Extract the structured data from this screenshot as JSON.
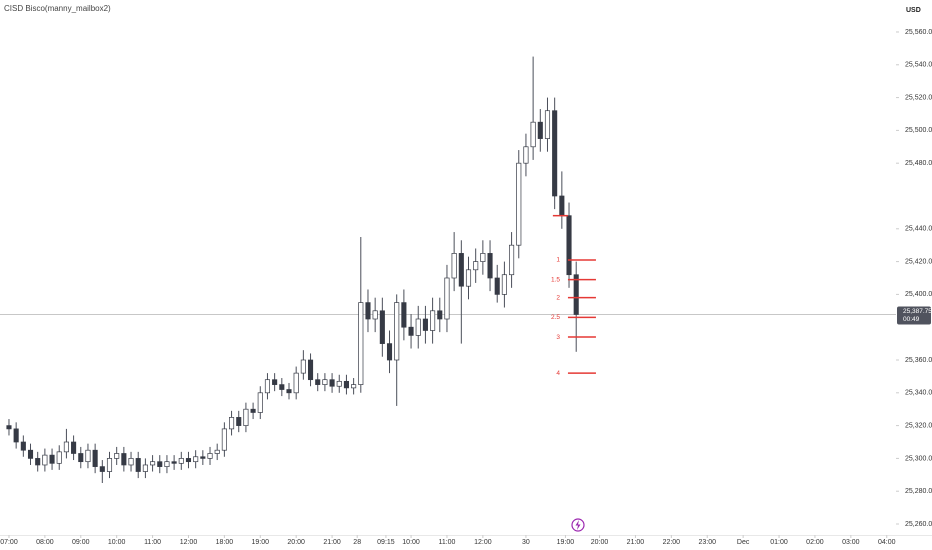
{
  "chart_data": {
    "type": "candlestick",
    "title": "CISD Bisco(manny_mailbox2)",
    "currency": "USD",
    "up_color": "#ffffff",
    "down_color": "#363a45",
    "wick_color": "#4a4e59",
    "xlim": [
      -0.25,
      24.68
    ],
    "ylim": [
      25253.3,
      25579.5
    ],
    "xticks": [
      {
        "value": 0,
        "label": "07:00"
      },
      {
        "value": 1,
        "label": "08:00"
      },
      {
        "value": 2,
        "label": "09:00"
      },
      {
        "value": 3,
        "label": "10:00"
      },
      {
        "value": 4,
        "label": "11:00"
      },
      {
        "value": 5,
        "label": "12:00"
      },
      {
        "value": 6,
        "label": "18:00"
      },
      {
        "value": 7,
        "label": "19:00"
      },
      {
        "value": 8,
        "label": "20:00"
      },
      {
        "value": 9,
        "label": "21:00"
      },
      {
        "value": 9.7,
        "label": "28"
      },
      {
        "value": 10.5,
        "label": "09:15"
      },
      {
        "value": 11.2,
        "label": "10:00"
      },
      {
        "value": 12.2,
        "label": "11:00"
      },
      {
        "value": 13.2,
        "label": "12:00"
      },
      {
        "value": 14.4,
        "label": "30"
      },
      {
        "value": 15.5,
        "label": "19:00"
      },
      {
        "value": 16.45,
        "label": "20:00"
      },
      {
        "value": 17.45,
        "label": "21:00"
      },
      {
        "value": 18.45,
        "label": "22:00"
      },
      {
        "value": 19.45,
        "label": "23:00"
      },
      {
        "value": 20.45,
        "label": "Dec"
      },
      {
        "value": 21.45,
        "label": "01:00"
      },
      {
        "value": 22.45,
        "label": "02:00"
      },
      {
        "value": 23.45,
        "label": "03:00"
      },
      {
        "value": 24.45,
        "label": "04:00"
      }
    ],
    "yticks": [
      {
        "value": 25560,
        "label": "25,560.00"
      },
      {
        "value": 25540,
        "label": "25,540.00"
      },
      {
        "value": 25520,
        "label": "25,520.00"
      },
      {
        "value": 25500,
        "label": "25,500.00"
      },
      {
        "value": 25480,
        "label": "25,480.00"
      },
      {
        "value": 25440,
        "label": "25,440.00"
      },
      {
        "value": 25420,
        "label": "25,420.00"
      },
      {
        "value": 25400,
        "label": "25,400.00"
      },
      {
        "value": 25360,
        "label": "25,360.00"
      },
      {
        "value": 25340,
        "label": "25,340.00"
      },
      {
        "value": 25320,
        "label": "25,320.00"
      },
      {
        "value": 25300,
        "label": "25,300.00"
      },
      {
        "value": 25280,
        "label": "25,280.00"
      },
      {
        "value": 25260,
        "label": "25,260.00"
      }
    ],
    "x": [
      0,
      0.2,
      0.4,
      0.6,
      0.8,
      1,
      1.2,
      1.4,
      1.6,
      1.8,
      2,
      2.2,
      2.4,
      2.6,
      2.8,
      3,
      3.2,
      3.4,
      3.6,
      3.8,
      4,
      4.2,
      4.4,
      4.6,
      4.8,
      5,
      5.2,
      5.4,
      5.6,
      5.8,
      6,
      6.2,
      6.4,
      6.6,
      6.8,
      7,
      7.2,
      7.4,
      7.6,
      7.8,
      8,
      8.2,
      8.4,
      8.6,
      8.8,
      9,
      9.2,
      9.4,
      9.6,
      9.8,
      10,
      10.2,
      10.4,
      10.6,
      10.8,
      11,
      11.2,
      11.4,
      11.6,
      11.8,
      12,
      12.2,
      12.4,
      12.6,
      12.8,
      13,
      13.2,
      13.4,
      13.6,
      13.8,
      14,
      14.2,
      14.4,
      14.6,
      14.8,
      15,
      15.2,
      15.4,
      15.6,
      15.8
    ],
    "open": [
      25320,
      25318,
      25310,
      25305,
      25300,
      25296,
      25302,
      25297,
      25304,
      25310,
      25303,
      25298,
      25305,
      25295,
      25292,
      25300,
      25303,
      25296,
      25300,
      25292,
      25296,
      25298,
      25295,
      25298,
      25297,
      25300,
      25298,
      25301,
      25300,
      25303,
      25305,
      25318,
      25325,
      25320,
      25330,
      25328,
      25340,
      25348,
      25345,
      25342,
      25340,
      25352,
      25360,
      25348,
      25345,
      25348,
      25344,
      25347,
      25343,
      25345,
      25395,
      25385,
      25390,
      25370,
      25360,
      25395,
      25380,
      25375,
      25385,
      25378,
      25390,
      25385,
      25410,
      25425,
      25405,
      25415,
      25420,
      25425,
      25410,
      25400,
      25412,
      25430,
      25480,
      25490,
      25505,
      25495,
      25512,
      25460,
      25448,
      25412
    ],
    "high": [
      25324,
      25322,
      25314,
      25309,
      25304,
      25306,
      25306,
      25308,
      25318,
      25314,
      25307,
      25309,
      25309,
      25299,
      25304,
      25307,
      25307,
      25304,
      25304,
      25300,
      25302,
      25302,
      25302,
      25302,
      25304,
      25304,
      25305,
      25305,
      25307,
      25309,
      25322,
      25329,
      25329,
      25334,
      25334,
      25344,
      25352,
      25352,
      25349,
      25346,
      25356,
      25366,
      25364,
      25352,
      25352,
      25352,
      25351,
      25351,
      25349,
      25435,
      25403,
      25398,
      25398,
      25378,
      25400,
      25403,
      25388,
      25393,
      25393,
      25398,
      25398,
      25418,
      25438,
      25433,
      25423,
      25428,
      25433,
      25433,
      25418,
      25420,
      25438,
      25488,
      25498,
      25545,
      25513,
      25520,
      25520,
      25475,
      25456,
      25420
    ],
    "low": [
      25314,
      25306,
      25301,
      25296,
      25292,
      25292,
      25293,
      25293,
      25300,
      25299,
      25294,
      25294,
      25291,
      25285,
      25288,
      25296,
      25292,
      25292,
      25288,
      25288,
      25292,
      25291,
      25291,
      25293,
      25293,
      25294,
      25294,
      25296,
      25296,
      25299,
      25301,
      25314,
      25316,
      25316,
      25324,
      25324,
      25336,
      25341,
      25338,
      25336,
      25336,
      25348,
      25344,
      25341,
      25341,
      25340,
      25340,
      25339,
      25339,
      25340,
      25377,
      25377,
      25362,
      25352,
      25332,
      25372,
      25367,
      25367,
      25370,
      25370,
      25377,
      25377,
      25402,
      25370,
      25397,
      25407,
      25412,
      25402,
      25395,
      25392,
      25404,
      25422,
      25472,
      25482,
      25487,
      25487,
      25452,
      25440,
      25404,
      25365
    ],
    "close": [
      25318,
      25310,
      25305,
      25300,
      25296,
      25302,
      25297,
      25304,
      25310,
      25303,
      25298,
      25305,
      25295,
      25292,
      25300,
      25303,
      25296,
      25300,
      25292,
      25296,
      25298,
      25295,
      25298,
      25297,
      25300,
      25298,
      25301,
      25300,
      25303,
      25305,
      25318,
      25325,
      25320,
      25330,
      25328,
      25340,
      25348,
      25345,
      25342,
      25340,
      25352,
      25360,
      25348,
      25345,
      25348,
      25344,
      25347,
      25343,
      25345,
      25395,
      25385,
      25390,
      25370,
      25360,
      25395,
      25380,
      25375,
      25385,
      25378,
      25390,
      25385,
      25410,
      25425,
      25405,
      25415,
      25420,
      25425,
      25410,
      25400,
      25412,
      25430,
      25480,
      25490,
      25505,
      25495,
      25512,
      25460,
      25448,
      25412,
      25387.75
    ],
    "level_color": "#e53935",
    "cisd_level": {
      "value": 25448,
      "x": [
        15.15,
        15.57
      ]
    },
    "levels": {
      "x": [
        15.57,
        16.35
      ],
      "items": [
        {
          "label": "1",
          "value": 25421
        },
        {
          "label": "1.5",
          "value": 25409
        },
        {
          "label": "2",
          "value": 25398
        },
        {
          "label": "2.5",
          "value": 25386
        },
        {
          "label": "3",
          "value": 25374
        },
        {
          "label": "4",
          "value": 25352
        }
      ]
    },
    "last_price": {
      "value": 25387.75,
      "label": "25,387.75",
      "countdown": "00:49"
    }
  }
}
